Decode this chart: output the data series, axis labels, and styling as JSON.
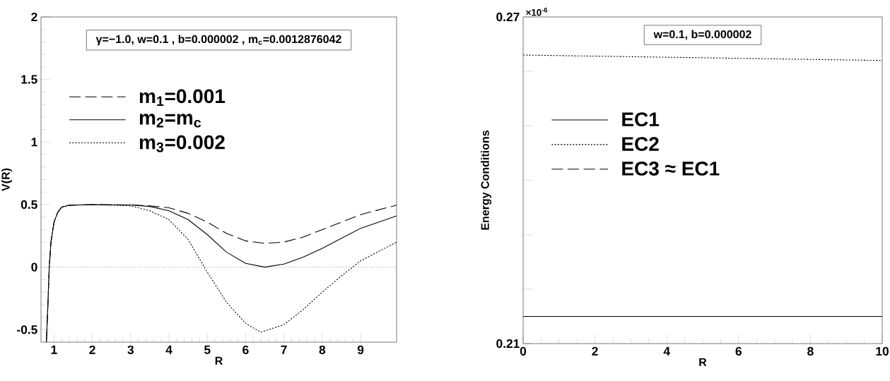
{
  "chart_data": [
    {
      "type": "line",
      "title": "γ=−1.0, w=0.1 , b=0.000002 , m$_{c}$=0.0012876042",
      "xlabel": "R",
      "ylabel": "V(R)",
      "xlim": [
        0.66,
        9.94
      ],
      "ylim": [
        -0.6,
        2
      ],
      "xticks": [
        1,
        2,
        3,
        4,
        5,
        6,
        7,
        8,
        9
      ],
      "yticks": [
        -0.5,
        0,
        0.5,
        1,
        1.5,
        2
      ],
      "legend": "top left",
      "grid": false,
      "marker": "none",
      "ref_lines": [
        {
          "axis": "y",
          "value": 0,
          "color": "#888888",
          "line_style": "dotted"
        }
      ],
      "series": [
        {
          "name": "m$_{1}$=0.001",
          "color": "#000000",
          "line_style": "dashed",
          "x": [
            0.8,
            0.84,
            0.875,
            0.92,
            1.0,
            1.1,
            1.2,
            1.4,
            2,
            3,
            3.5,
            4,
            4.5,
            5,
            5.5,
            6,
            6.5,
            7,
            7.5,
            8,
            8.5,
            9,
            9.94
          ],
          "values": [
            -0.6,
            -0.3,
            0,
            0.2,
            0.36,
            0.44,
            0.48,
            0.495,
            0.5,
            0.497,
            0.49,
            0.474,
            0.43,
            0.36,
            0.27,
            0.21,
            0.19,
            0.2,
            0.24,
            0.3,
            0.36,
            0.42,
            0.495
          ]
        },
        {
          "name": "m$_{2}$=m$_{c}$",
          "color": "#000000",
          "line_style": "solid",
          "x": [
            0.8,
            0.84,
            0.875,
            0.92,
            1.0,
            1.1,
            1.2,
            1.4,
            2,
            3,
            3.5,
            4,
            4.5,
            5,
            5.5,
            6,
            6.5,
            7,
            7.5,
            8,
            8.5,
            9,
            9.94
          ],
          "values": [
            -0.6,
            -0.3,
            0,
            0.2,
            0.36,
            0.44,
            0.48,
            0.495,
            0.5,
            0.497,
            0.485,
            0.45,
            0.38,
            0.26,
            0.12,
            0.03,
            0.0,
            0.025,
            0.08,
            0.15,
            0.23,
            0.31,
            0.41
          ]
        },
        {
          "name": "m$_{3}$=0.002",
          "color": "#000000",
          "line_style": "dotted",
          "x": [
            0.8,
            0.84,
            0.875,
            0.92,
            1.0,
            1.1,
            1.2,
            1.4,
            2,
            3,
            3.5,
            4,
            4.5,
            5,
            5.5,
            6,
            6.4,
            7,
            7.5,
            8,
            8.5,
            9,
            9.94
          ],
          "values": [
            -0.6,
            -0.3,
            0,
            0.2,
            0.36,
            0.44,
            0.48,
            0.495,
            0.5,
            0.49,
            0.45,
            0.38,
            0.22,
            -0.04,
            -0.28,
            -0.45,
            -0.52,
            -0.46,
            -0.34,
            -0.2,
            -0.07,
            0.05,
            0.2
          ]
        }
      ]
    },
    {
      "type": "line",
      "title": "w=0.1, b=0.000002",
      "xlabel": "R",
      "ylabel": "Energy Conditions",
      "annotations": [
        "×10$^{-6}$"
      ],
      "xlim": [
        0,
        10
      ],
      "ylim": [
        0.21,
        0.27
      ],
      "xticks": [
        0,
        2,
        4,
        6,
        8,
        10
      ],
      "yticks": [
        0.21,
        {
          "value": 0.22,
          "label": null
        },
        {
          "value": 0.23,
          "label": null
        },
        {
          "value": 0.24,
          "label": null
        },
        {
          "value": 0.25,
          "label": null
        },
        {
          "value": 0.26,
          "label": null
        },
        0.27
      ],
      "legend": "left",
      "grid": false,
      "marker": "none",
      "series": [
        {
          "name": "EC1",
          "color": "#000000",
          "line_style": "solid",
          "x": [
            0,
            10
          ],
          "values": [
            0.215,
            0.215
          ]
        },
        {
          "name": "EC2",
          "color": "#000000",
          "line_style": "dotted",
          "x": [
            0,
            10
          ],
          "values": [
            0.263,
            0.262
          ]
        },
        {
          "name": "EC3 ≈ EC1",
          "color": "#000000",
          "line_style": "dashed"
        }
      ]
    }
  ]
}
